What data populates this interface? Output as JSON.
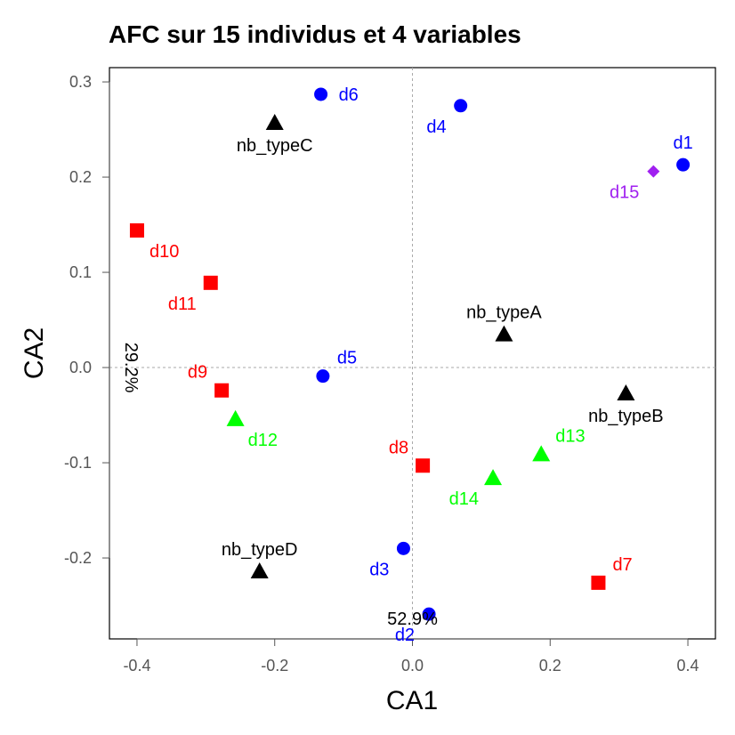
{
  "chart_data": {
    "type": "scatter",
    "title": "AFC sur 15 individus et 4 variables",
    "xlabel": "CA1",
    "ylabel": "CA2",
    "xlim": [
      -0.44,
      0.44
    ],
    "ylim": [
      -0.285,
      0.315
    ],
    "xticks": [
      -0.4,
      -0.2,
      0.0,
      0.2,
      0.4
    ],
    "xtick_labels": [
      "-0.4",
      "-0.2",
      "0.0",
      "0.2",
      "0.4"
    ],
    "yticks": [
      -0.2,
      -0.1,
      0.0,
      0.1,
      0.2,
      0.3
    ],
    "ytick_labels": [
      "-0.2",
      "-0.1",
      "0.0",
      "0.1",
      "0.2",
      "0.3"
    ],
    "reference_lines": "dashed grey lines at x = 0 and y = 0",
    "axis1_inertia": "52.9%",
    "axis2_inertia": "29.2%",
    "colors": {
      "blue": "#0000ff",
      "red": "#ff0000",
      "green": "#00ff00",
      "purple": "#a020f0",
      "black": "#000000"
    },
    "individuals": [
      {
        "label": "d1",
        "x": 0.393,
        "y": 0.213,
        "shape": "circle",
        "color": "#0000ff",
        "label_pos": "above"
      },
      {
        "label": "d2",
        "x": 0.024,
        "y": -0.259,
        "shape": "circle",
        "color": "#0000ff",
        "label_pos": "below-left"
      },
      {
        "label": "d3",
        "x": -0.013,
        "y": -0.19,
        "shape": "circle",
        "color": "#0000ff",
        "label_pos": "below-left"
      },
      {
        "label": "d4",
        "x": 0.07,
        "y": 0.275,
        "shape": "circle",
        "color": "#0000ff",
        "label_pos": "below-left"
      },
      {
        "label": "d5",
        "x": -0.13,
        "y": -0.009,
        "shape": "circle",
        "color": "#0000ff",
        "label_pos": "above-right"
      },
      {
        "label": "d6",
        "x": -0.133,
        "y": 0.287,
        "shape": "circle",
        "color": "#0000ff",
        "label_pos": "right"
      },
      {
        "label": "d7",
        "x": 0.27,
        "y": -0.226,
        "shape": "square",
        "color": "#ff0000",
        "label_pos": "above-right"
      },
      {
        "label": "d8",
        "x": 0.015,
        "y": -0.103,
        "shape": "square",
        "color": "#ff0000",
        "label_pos": "above-left"
      },
      {
        "label": "d9",
        "x": -0.277,
        "y": -0.024,
        "shape": "square",
        "color": "#ff0000",
        "label_pos": "above-left"
      },
      {
        "label": "d10",
        "x": -0.4,
        "y": 0.144,
        "shape": "square",
        "color": "#ff0000",
        "label_pos": "below-right"
      },
      {
        "label": "d11",
        "x": -0.293,
        "y": 0.089,
        "shape": "square",
        "color": "#ff0000",
        "label_pos": "below-left"
      },
      {
        "label": "d12",
        "x": -0.257,
        "y": -0.054,
        "shape": "triangle",
        "color": "#00ff00",
        "label_pos": "below-right"
      },
      {
        "label": "d13",
        "x": 0.187,
        "y": -0.091,
        "shape": "triangle",
        "color": "#00ff00",
        "label_pos": "above-right"
      },
      {
        "label": "d14",
        "x": 0.117,
        "y": -0.116,
        "shape": "triangle",
        "color": "#00ff00",
        "label_pos": "below-left"
      },
      {
        "label": "d15",
        "x": 0.35,
        "y": 0.206,
        "shape": "diamond",
        "color": "#a020f0",
        "label_pos": "below-left"
      }
    ],
    "variables": [
      {
        "label": "nb_typeA",
        "x": 0.133,
        "y": 0.035,
        "shape": "triangle",
        "color": "#000000",
        "label_pos": "above"
      },
      {
        "label": "nb_typeB",
        "x": 0.31,
        "y": -0.027,
        "shape": "triangle",
        "color": "#000000",
        "label_pos": "below"
      },
      {
        "label": "nb_typeC",
        "x": -0.2,
        "y": 0.257,
        "shape": "triangle",
        "color": "#000000",
        "label_pos": "below"
      },
      {
        "label": "nb_typeD",
        "x": -0.222,
        "y": -0.214,
        "shape": "triangle",
        "color": "#000000",
        "label_pos": "above"
      }
    ]
  }
}
